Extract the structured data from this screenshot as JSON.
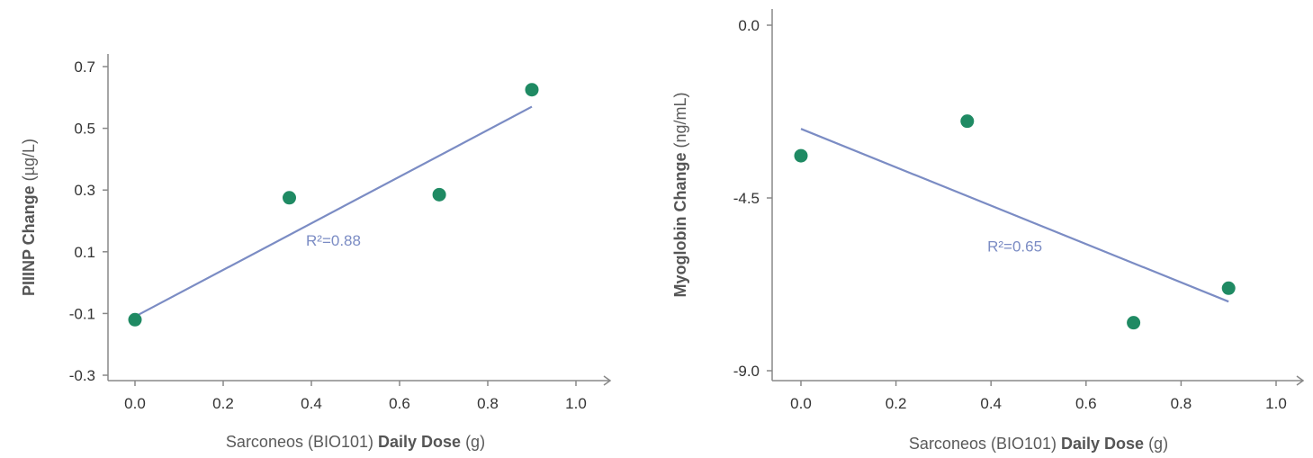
{
  "chart_data": [
    {
      "type": "scatter",
      "title": "",
      "xlabel_parts": [
        "Sarconeos (BIO101) ",
        "Daily Dose",
        " (g)"
      ],
      "ylabel_parts": [
        "PIIINP Change",
        " (µg/L)"
      ],
      "xlim": [
        0.0,
        1.0
      ],
      "ylim": [
        -0.3,
        0.7
      ],
      "xticks": [
        0.0,
        0.2,
        0.4,
        0.6,
        0.8,
        1.0
      ],
      "xtick_labels": [
        "0.0",
        "0.2",
        "0.4",
        "0.6",
        "0.8",
        "1.0"
      ],
      "yticks": [
        -0.3,
        -0.1,
        0.1,
        0.3,
        0.5,
        0.7
      ],
      "ytick_labels": [
        "-0.3",
        "-0.1",
        "0.1",
        "0.3",
        "0.5",
        "0.7"
      ],
      "points": [
        {
          "x": 0.0,
          "y": -0.12
        },
        {
          "x": 0.35,
          "y": 0.275
        },
        {
          "x": 0.69,
          "y": 0.285
        },
        {
          "x": 0.9,
          "y": 0.625
        }
      ],
      "trendline": {
        "x": [
          0.0,
          0.9
        ],
        "y": [
          -0.11,
          0.57
        ]
      },
      "annotation": {
        "text": "R²=0.88",
        "x": 0.45,
        "y": 0.12
      },
      "point_color": "#1f8a63",
      "line_color": "#7b8cc4",
      "axis_color": "#888888",
      "grid": false
    },
    {
      "type": "scatter",
      "title": "",
      "xlabel_parts": [
        "Sarconeos (BIO101) ",
        "Daily Dose",
        " (g)"
      ],
      "ylabel_parts": [
        "Myoglobin Change",
        " (ng/mL)"
      ],
      "xlim": [
        0.0,
        1.0
      ],
      "ylim": [
        -9.0,
        0.0
      ],
      "xticks": [
        0.0,
        0.2,
        0.4,
        0.6,
        0.8,
        1.0
      ],
      "xtick_labels": [
        "0.0",
        "0.2",
        "0.4",
        "0.6",
        "0.8",
        "1.0"
      ],
      "yticks": [
        -9.0,
        -4.5,
        0.0
      ],
      "ytick_labels": [
        "-9.0",
        "-4.5",
        "0.0"
      ],
      "points": [
        {
          "x": 0.0,
          "y": -3.4
        },
        {
          "x": 0.35,
          "y": -2.5
        },
        {
          "x": 0.7,
          "y": -7.75
        },
        {
          "x": 0.9,
          "y": -6.85
        }
      ],
      "trendline": {
        "x": [
          0.0,
          0.9
        ],
        "y": [
          -2.7,
          -7.2
        ]
      },
      "annotation": {
        "text": "R²=0.65",
        "x": 0.45,
        "y": -5.9
      },
      "point_color": "#1f8a63",
      "line_color": "#7b8cc4",
      "axis_color": "#888888",
      "grid": false
    }
  ]
}
